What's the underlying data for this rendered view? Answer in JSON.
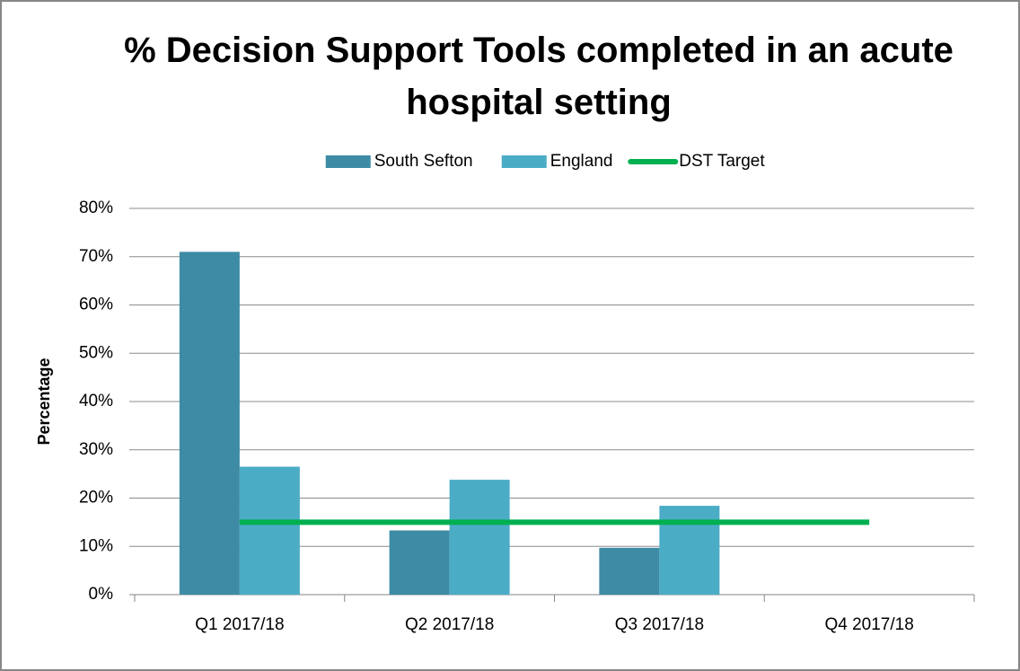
{
  "chart_data": {
    "type": "bar",
    "title": "% Decision Support Tools completed in an acute hospital setting",
    "y_label": "Percentage",
    "categories": [
      "Q1 2017/18",
      "Q2 2017/18",
      "Q3 2017/18",
      "Q4 2017/18"
    ],
    "series": [
      {
        "name": "South Sefton",
        "type": "bar",
        "color": "#3d8ba4",
        "values": [
          71,
          13.3,
          9.7,
          null
        ]
      },
      {
        "name": "England",
        "type": "bar",
        "color": "#4bacc6",
        "values": [
          26.5,
          23.8,
          18.4,
          null
        ]
      },
      {
        "name": "DST Target",
        "type": "line",
        "color": "#00b050",
        "values": [
          15,
          15,
          15,
          15
        ]
      }
    ],
    "ylim": [
      0,
      80
    ],
    "yticks": [
      {
        "value": 0,
        "label": "0%"
      },
      {
        "value": 10,
        "label": "10%"
      },
      {
        "value": 20,
        "label": "20%"
      },
      {
        "value": 30,
        "label": "30%"
      },
      {
        "value": 40,
        "label": "40%"
      },
      {
        "value": 50,
        "label": "50%"
      },
      {
        "value": 60,
        "label": "60%"
      },
      {
        "value": 70,
        "label": "70%"
      },
      {
        "value": 80,
        "label": "80%"
      }
    ],
    "grid": true,
    "legend": "top"
  }
}
